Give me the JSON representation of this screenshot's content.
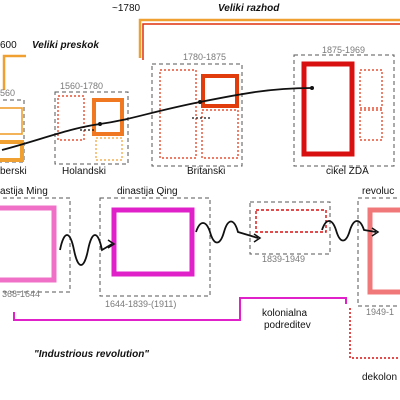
{
  "top": {
    "date_1780": "~1780",
    "date_1600_partial": "600",
    "veliki_razhod": "Veliki razhod",
    "veliki_preskok": "Veliki preskok"
  },
  "upper_row": {
    "cycles": [
      {
        "label": "berski",
        "years": "560"
      },
      {
        "label": "Holandski",
        "years": "1560-1780"
      },
      {
        "label": "Britanski",
        "years": "1780-1875"
      },
      {
        "label": "cikel ZDA",
        "years": "1875-1969"
      }
    ]
  },
  "lower_row": {
    "dynasties": [
      {
        "label": "astija Ming",
        "years": "368-1644"
      },
      {
        "label": "dinastija Qing",
        "years": "1644-1839-(1911)"
      },
      {
        "label": "",
        "years": "1839-1949"
      },
      {
        "label": "revoluc",
        "years": "1949-1"
      }
    ]
  },
  "bottom": {
    "kolonialna": "kolonialna",
    "podreditev": "podreditev",
    "industrious": "\"Industrious revolution\"",
    "dekolon": "dekolon"
  },
  "colors": {
    "orange": "#f0a030",
    "red": "#e0300c",
    "dark_red": "#d81010",
    "magenta": "#e020c8",
    "pink": "#f070c8",
    "salmon": "#f07878"
  }
}
